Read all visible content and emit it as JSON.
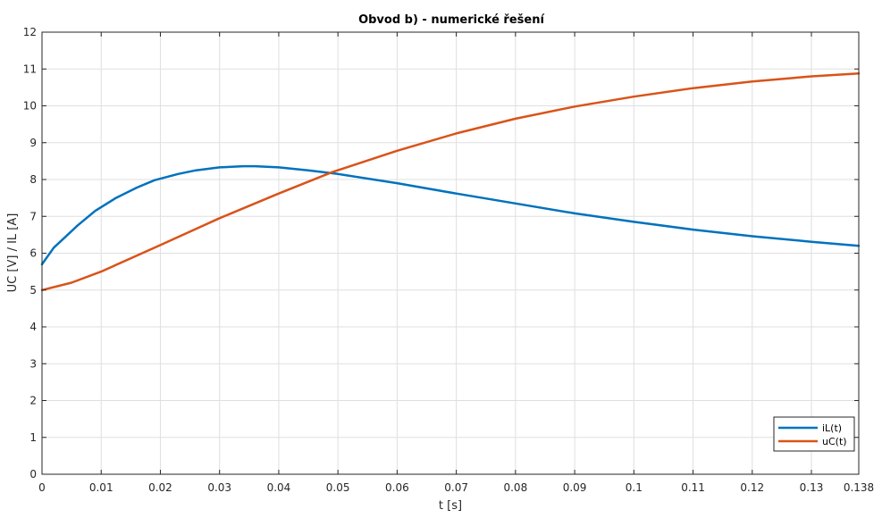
{
  "chart_data": {
    "type": "line",
    "title": "Obvod b) - numerické řešení",
    "xlabel": "t [s]",
    "ylabel": "UC [V] / IL [A]",
    "xlim": [
      0,
      0.138
    ],
    "ylim": [
      0,
      12
    ],
    "xticks": [
      0,
      0.01,
      0.02,
      0.03,
      0.04,
      0.05,
      0.06,
      0.07,
      0.08,
      0.09,
      0.1,
      0.11,
      0.12,
      0.13,
      0.138
    ],
    "xtick_labels": [
      "0",
      "0.01",
      "0.02",
      "0.03",
      "0.04",
      "0.05",
      "0.06",
      "0.07",
      "0.08",
      "0.09",
      "0.1",
      "0.11",
      "0.12",
      "0.13",
      "0.138"
    ],
    "yticks": [
      0,
      1,
      2,
      3,
      4,
      5,
      6,
      7,
      8,
      9,
      10,
      11,
      12
    ],
    "ytick_labels": [
      "0",
      "1",
      "2",
      "3",
      "4",
      "5",
      "6",
      "7",
      "8",
      "9",
      "10",
      "11",
      "12"
    ],
    "grid": true,
    "legend_position": "bottom-right",
    "series": [
      {
        "name": "iL(t)",
        "color": "#0072bd",
        "x": [
          0,
          0.002,
          0.004,
          0.006,
          0.009,
          0.0125,
          0.016,
          0.019,
          0.023,
          0.026,
          0.03,
          0.034,
          0.036,
          0.04,
          0.045,
          0.05,
          0.06,
          0.07,
          0.08,
          0.09,
          0.1,
          0.11,
          0.12,
          0.13,
          0.138
        ],
        "y": [
          5.7,
          6.15,
          6.45,
          6.75,
          7.15,
          7.5,
          7.78,
          7.98,
          8.15,
          8.25,
          8.33,
          8.36,
          8.36,
          8.33,
          8.25,
          8.15,
          7.9,
          7.62,
          7.35,
          7.08,
          6.85,
          6.64,
          6.46,
          6.31,
          6.2
        ]
      },
      {
        "name": "uC(t)",
        "color": "#d95319",
        "x": [
          0,
          0.005,
          0.01,
          0.02,
          0.03,
          0.04,
          0.049,
          0.06,
          0.07,
          0.08,
          0.09,
          0.1,
          0.11,
          0.12,
          0.13,
          0.138
        ],
        "y": [
          5.0,
          5.2,
          5.5,
          6.22,
          6.95,
          7.62,
          8.2,
          8.78,
          9.25,
          9.65,
          9.98,
          10.25,
          10.48,
          10.66,
          10.8,
          10.88
        ]
      }
    ]
  }
}
